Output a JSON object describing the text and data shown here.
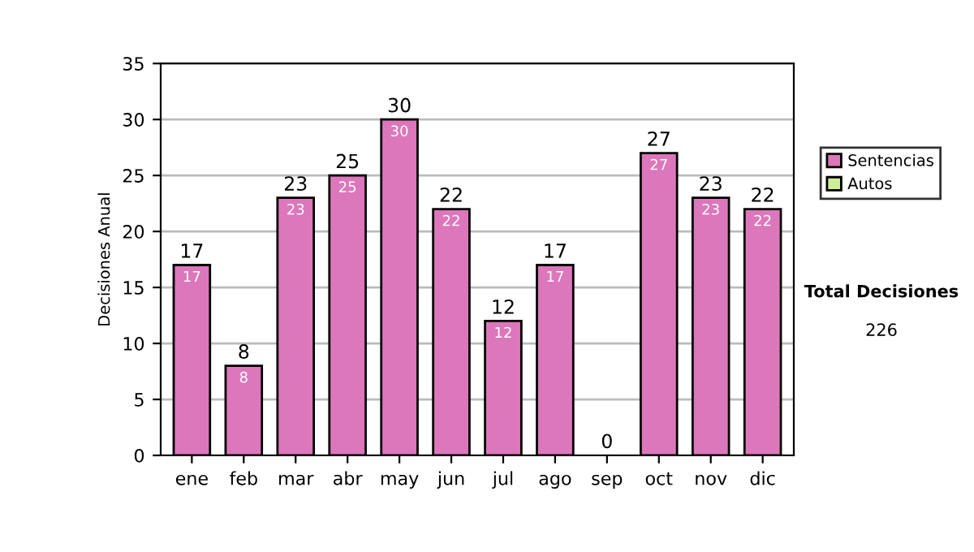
{
  "chart_data": {
    "type": "bar",
    "stacked": true,
    "ylabel": "Decisiones Anual",
    "categories": [
      "ene",
      "feb",
      "mar",
      "abr",
      "may",
      "jun",
      "jul",
      "ago",
      "sep",
      "oct",
      "nov",
      "dic"
    ],
    "series": [
      {
        "name": "Sentencias",
        "color": "#dd77bb",
        "values": [
          17,
          8,
          23,
          25,
          30,
          22,
          12,
          17,
          0,
          27,
          23,
          22
        ],
        "value_labels": [
          "17",
          "8",
          "23",
          "25",
          "30",
          "22",
          "12",
          "17",
          null,
          "27",
          "23",
          "22"
        ]
      },
      {
        "name": "Autos",
        "color": "#ccee99",
        "values": [
          0,
          0,
          0,
          0,
          0,
          0,
          0,
          0,
          0,
          0,
          0,
          0
        ]
      }
    ],
    "totals": [
      "17",
      "8",
      "23",
      "25",
      "30",
      "22",
      "12",
      "17",
      "0",
      "27",
      "23",
      "22"
    ],
    "ylim": [
      0,
      35
    ],
    "yticks": [
      0,
      5,
      10,
      15,
      20,
      25,
      30,
      35
    ],
    "grid": "y",
    "legend": "right",
    "annotations": [
      "Total Decisiones",
      "226"
    ]
  }
}
